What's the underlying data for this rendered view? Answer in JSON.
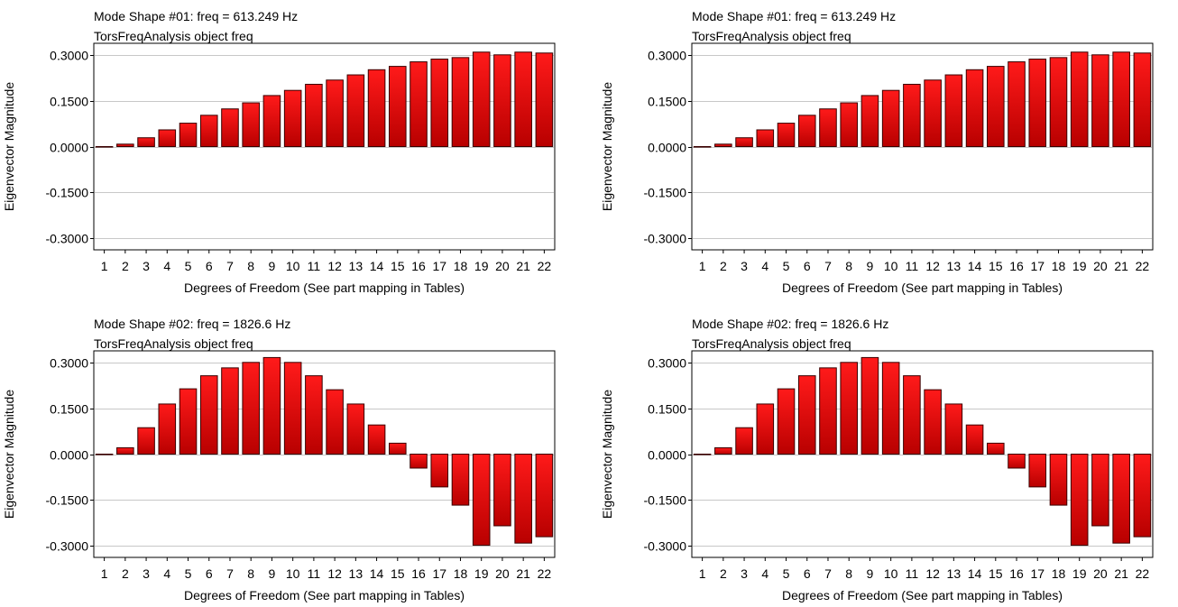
{
  "chart_data": [
    {
      "type": "bar",
      "title": "Mode Shape #01: freq = 613.249 Hz",
      "subtitle": "TorsFreqAnalysis object freq",
      "xlabel": "Degrees of Freedom (See part mapping in Tables)",
      "ylabel": "Eigenvector Magnitude",
      "ylim": [
        -0.34,
        0.34
      ],
      "yticks": [
        "0.3000",
        "0.1500",
        "0.0000",
        "-0.1500",
        "-0.3000"
      ],
      "ytick_values": [
        0.3,
        0.15,
        0.0,
        -0.15,
        -0.3
      ],
      "grid": true,
      "bar_color": "#e00000",
      "categories": [
        "1",
        "2",
        "3",
        "4",
        "5",
        "6",
        "7",
        "8",
        "9",
        "10",
        "11",
        "12",
        "13",
        "14",
        "15",
        "16",
        "17",
        "18",
        "19",
        "20",
        "21",
        "22"
      ],
      "values": [
        0.0,
        0.008,
        0.029,
        0.055,
        0.077,
        0.103,
        0.124,
        0.144,
        0.168,
        0.185,
        0.205,
        0.219,
        0.236,
        0.253,
        0.264,
        0.279,
        0.288,
        0.293,
        0.311,
        0.302,
        0.311,
        0.308
      ]
    },
    {
      "type": "bar",
      "title": "Mode Shape #01: freq = 613.249 Hz",
      "subtitle": "TorsFreqAnalysis object freq",
      "xlabel": "Degrees of Freedom (See part mapping in Tables)",
      "ylabel": "Eigenvector Magnitude",
      "ylim": [
        -0.34,
        0.34
      ],
      "yticks": [
        "0.3000",
        "0.1500",
        "0.0000",
        "-0.1500",
        "-0.3000"
      ],
      "ytick_values": [
        0.3,
        0.15,
        0.0,
        -0.15,
        -0.3
      ],
      "grid": true,
      "bar_color": "#e00000",
      "categories": [
        "1",
        "2",
        "3",
        "4",
        "5",
        "6",
        "7",
        "8",
        "9",
        "10",
        "11",
        "12",
        "13",
        "14",
        "15",
        "16",
        "17",
        "18",
        "19",
        "20",
        "21",
        "22"
      ],
      "values": [
        0.0,
        0.008,
        0.029,
        0.055,
        0.077,
        0.103,
        0.124,
        0.144,
        0.168,
        0.185,
        0.205,
        0.219,
        0.236,
        0.253,
        0.264,
        0.279,
        0.288,
        0.293,
        0.311,
        0.302,
        0.311,
        0.308
      ]
    },
    {
      "type": "bar",
      "title": "Mode Shape #02: freq = 1826.6 Hz",
      "subtitle": "TorsFreqAnalysis object freq",
      "xlabel": "Degrees of Freedom (See part mapping in Tables)",
      "ylabel": "Eigenvector Magnitude",
      "ylim": [
        -0.34,
        0.34
      ],
      "yticks": [
        "0.3000",
        "0.1500",
        "0.0000",
        "-0.1500",
        "-0.3000"
      ],
      "ytick_values": [
        0.3,
        0.15,
        0.0,
        -0.15,
        -0.3
      ],
      "grid": true,
      "bar_color": "#e00000",
      "categories": [
        "1",
        "2",
        "3",
        "4",
        "5",
        "6",
        "7",
        "8",
        "9",
        "10",
        "11",
        "12",
        "13",
        "14",
        "15",
        "16",
        "17",
        "18",
        "19",
        "20",
        "21",
        "22"
      ],
      "values": [
        0.0,
        0.021,
        0.087,
        0.165,
        0.215,
        0.258,
        0.284,
        0.302,
        0.318,
        0.302,
        0.258,
        0.212,
        0.165,
        0.096,
        0.036,
        -0.046,
        -0.108,
        -0.168,
        -0.3,
        -0.236,
        -0.293,
        -0.272
      ]
    },
    {
      "type": "bar",
      "title": "Mode Shape #02: freq = 1826.6 Hz",
      "subtitle": "TorsFreqAnalysis object freq",
      "xlabel": "Degrees of Freedom (See part mapping in Tables)",
      "ylabel": "Eigenvector Magnitude",
      "ylim": [
        -0.34,
        0.34
      ],
      "yticks": [
        "0.3000",
        "0.1500",
        "0.0000",
        "-0.1500",
        "-0.3000"
      ],
      "ytick_values": [
        0.3,
        0.15,
        0.0,
        -0.15,
        -0.3
      ],
      "grid": true,
      "bar_color": "#e00000",
      "categories": [
        "1",
        "2",
        "3",
        "4",
        "5",
        "6",
        "7",
        "8",
        "9",
        "10",
        "11",
        "12",
        "13",
        "14",
        "15",
        "16",
        "17",
        "18",
        "19",
        "20",
        "21",
        "22"
      ],
      "values": [
        0.0,
        0.021,
        0.087,
        0.165,
        0.215,
        0.258,
        0.284,
        0.302,
        0.318,
        0.302,
        0.258,
        0.212,
        0.165,
        0.096,
        0.036,
        -0.046,
        -0.108,
        -0.168,
        -0.3,
        -0.236,
        -0.293,
        -0.272
      ]
    }
  ]
}
